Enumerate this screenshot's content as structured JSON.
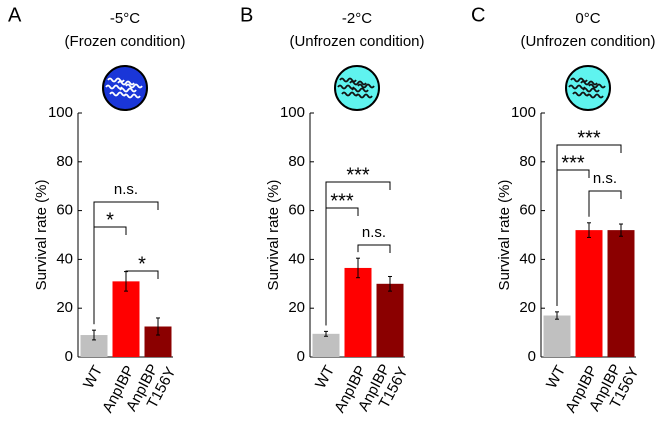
{
  "chart_data": [
    {
      "type": "bar",
      "panel": "A",
      "title": "-5°C",
      "subtitle": "(Frozen condition)",
      "icon_color": "#1a36d8",
      "worm_color": "#ffffff",
      "ylabel": "Survival rate (%)",
      "categories": [
        "WT",
        "AnpIBP",
        "AnpIBP T156Y"
      ],
      "values": [
        9,
        31,
        12.5
      ],
      "errors": [
        2,
        4,
        3.5
      ],
      "colors": [
        "#c0c0c0",
        "#ff0000",
        "#8b0000"
      ],
      "ylim": [
        0,
        100
      ],
      "yticks": [
        0,
        20,
        40,
        60,
        80,
        100
      ],
      "annotations": [
        {
          "from": 0,
          "to": 1,
          "label": "*"
        },
        {
          "from": 0,
          "to": 2,
          "label": "n.s."
        },
        {
          "from": 1,
          "to": 2,
          "label": "*"
        }
      ]
    },
    {
      "type": "bar",
      "panel": "B",
      "title": "-2°C",
      "subtitle": "(Unfrozen condition)",
      "icon_color": "#5ff3ef",
      "worm_color": "#111111",
      "ylabel": "Survival rate (%)",
      "categories": [
        "WT",
        "AnpIBP",
        "AnpIBP T156Y"
      ],
      "values": [
        9.5,
        36.5,
        30
      ],
      "errors": [
        1,
        4,
        3
      ],
      "colors": [
        "#c0c0c0",
        "#ff0000",
        "#8b0000"
      ],
      "ylim": [
        0,
        100
      ],
      "yticks": [
        0,
        20,
        40,
        60,
        80,
        100
      ],
      "annotations": [
        {
          "from": 0,
          "to": 1,
          "label": "***"
        },
        {
          "from": 0,
          "to": 2,
          "label": "***"
        },
        {
          "from": 1,
          "to": 2,
          "label": "n.s."
        }
      ]
    },
    {
      "type": "bar",
      "panel": "C",
      "title": "0°C",
      "subtitle": "(Unfrozen condition)",
      "icon_color": "#5ff3ef",
      "worm_color": "#111111",
      "ylabel": "Survival rate (%)",
      "categories": [
        "WT",
        "AnpIBP",
        "AnpIBP T156Y"
      ],
      "values": [
        17,
        52,
        52
      ],
      "errors": [
        1.5,
        3,
        2.5
      ],
      "colors": [
        "#c0c0c0",
        "#ff0000",
        "#8b0000"
      ],
      "ylim": [
        0,
        100
      ],
      "yticks": [
        0,
        20,
        40,
        60,
        80,
        100
      ],
      "annotations": [
        {
          "from": 0,
          "to": 1,
          "label": "***"
        },
        {
          "from": 0,
          "to": 2,
          "label": "***"
        },
        {
          "from": 1,
          "to": 2,
          "label": "n.s."
        }
      ]
    }
  ]
}
